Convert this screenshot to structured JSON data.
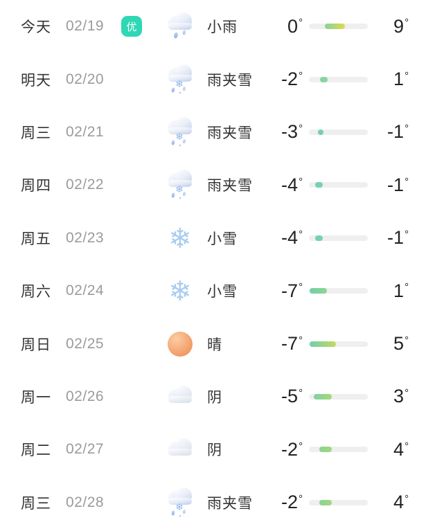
{
  "forecast": {
    "degree_symbol": "°",
    "track_color": "#efefef",
    "aqi_badge_color": "#2fd7b5",
    "rows": [
      {
        "day": "今天",
        "date": "02/19",
        "badge": "优",
        "icon": "rain",
        "icon_name": "rain-cloud-icon",
        "condition": "小雨",
        "low": "0",
        "high": "9",
        "bar": {
          "left_pct": 27,
          "width_pct": 34,
          "color_from": "#86d49c",
          "color_to": "#e2d94b"
        }
      },
      {
        "day": "明天",
        "date": "02/20",
        "badge": "",
        "icon": "sleet",
        "icon_name": "sleet-cloud-icon",
        "condition": "雨夹雪",
        "low": "-2",
        "high": "1",
        "bar": {
          "left_pct": 19,
          "width_pct": 13,
          "color_from": "#7fd5a8",
          "color_to": "#8cd795"
        }
      },
      {
        "day": "周三",
        "date": "02/21",
        "badge": "",
        "icon": "sleet",
        "icon_name": "sleet-cloud-icon",
        "condition": "雨夹雪",
        "low": "-3",
        "high": "-1",
        "bar": {
          "left_pct": 15,
          "width_pct": 10,
          "color_from": "#6fd0b5",
          "color_to": "#77d2ad"
        }
      },
      {
        "day": "周四",
        "date": "02/22",
        "badge": "",
        "icon": "sleet",
        "icon_name": "sleet-cloud-icon",
        "condition": "雨夹雪",
        "low": "-4",
        "high": "-1",
        "bar": {
          "left_pct": 11,
          "width_pct": 12,
          "color_from": "#6fd0b5",
          "color_to": "#79d3ab"
        }
      },
      {
        "day": "周五",
        "date": "02/23",
        "badge": "",
        "icon": "snow",
        "icon_name": "snowflake-icon",
        "condition": "小雪",
        "low": "-4",
        "high": "-1",
        "bar": {
          "left_pct": 11,
          "width_pct": 12,
          "color_from": "#6fd0b5",
          "color_to": "#79d3ab"
        }
      },
      {
        "day": "周六",
        "date": "02/24",
        "badge": "",
        "icon": "snow",
        "icon_name": "snowflake-icon",
        "condition": "小雪",
        "low": "-7",
        "high": "1",
        "bar": {
          "left_pct": 1,
          "width_pct": 30,
          "color_from": "#6ecfb0",
          "color_to": "#90d58f"
        }
      },
      {
        "day": "周日",
        "date": "02/25",
        "badge": "",
        "icon": "sun",
        "icon_name": "sun-icon",
        "condition": "晴",
        "low": "-7",
        "high": "5",
        "bar": {
          "left_pct": 1,
          "width_pct": 45,
          "color_from": "#6ecfb0",
          "color_to": "#c4d960"
        }
      },
      {
        "day": "周一",
        "date": "02/26",
        "badge": "",
        "icon": "cloudy",
        "icon_name": "overcast-cloud-icon",
        "condition": "阴",
        "low": "-5",
        "high": "3",
        "bar": {
          "left_pct": 8,
          "width_pct": 31,
          "color_from": "#7cd2a6",
          "color_to": "#abd876"
        }
      },
      {
        "day": "周二",
        "date": "02/27",
        "badge": "",
        "icon": "cloudy",
        "icon_name": "overcast-cloud-icon",
        "condition": "阴",
        "low": "-2",
        "high": "4",
        "bar": {
          "left_pct": 18,
          "width_pct": 21,
          "color_from": "#8ad492",
          "color_to": "#a2d780"
        }
      },
      {
        "day": "周三",
        "date": "02/28",
        "badge": "",
        "icon": "sleet",
        "icon_name": "sleet-cloud-icon",
        "condition": "雨夹雪",
        "low": "-2",
        "high": "4",
        "bar": {
          "left_pct": 18,
          "width_pct": 21,
          "color_from": "#8ad492",
          "color_to": "#a2d780"
        }
      }
    ]
  }
}
